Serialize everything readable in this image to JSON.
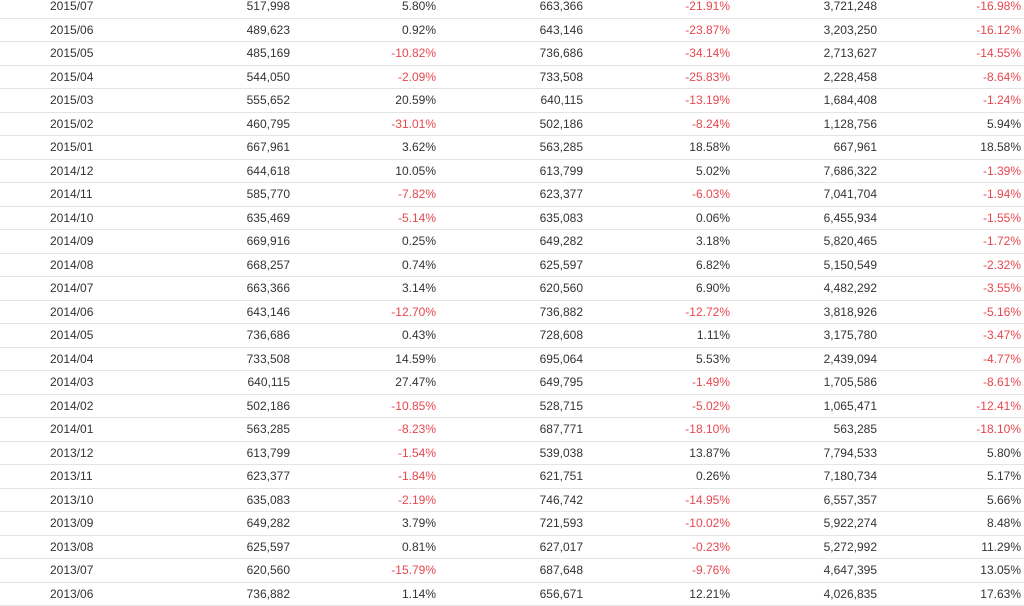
{
  "colors": {
    "text": "#333333",
    "negative": "#e8474f",
    "row_border": "#e4e4e4"
  },
  "table": {
    "rows": [
      [
        "2015/07",
        "517,998",
        "5.80%",
        "663,366",
        "-21.91%",
        "3,721,248",
        "-16.98%"
      ],
      [
        "2015/06",
        "489,623",
        "0.92%",
        "643,146",
        "-23.87%",
        "3,203,250",
        "-16.12%"
      ],
      [
        "2015/05",
        "485,169",
        "-10.82%",
        "736,686",
        "-34.14%",
        "2,713,627",
        "-14.55%"
      ],
      [
        "2015/04",
        "544,050",
        "-2.09%",
        "733,508",
        "-25.83%",
        "2,228,458",
        "-8.64%"
      ],
      [
        "2015/03",
        "555,652",
        "20.59%",
        "640,115",
        "-13.19%",
        "1,684,408",
        "-1.24%"
      ],
      [
        "2015/02",
        "460,795",
        "-31.01%",
        "502,186",
        "-8.24%",
        "1,128,756",
        "5.94%"
      ],
      [
        "2015/01",
        "667,961",
        "3.62%",
        "563,285",
        "18.58%",
        "667,961",
        "18.58%"
      ],
      [
        "2014/12",
        "644,618",
        "10.05%",
        "613,799",
        "5.02%",
        "7,686,322",
        "-1.39%"
      ],
      [
        "2014/11",
        "585,770",
        "-7.82%",
        "623,377",
        "-6.03%",
        "7,041,704",
        "-1.94%"
      ],
      [
        "2014/10",
        "635,469",
        "-5.14%",
        "635,083",
        "0.06%",
        "6,455,934",
        "-1.55%"
      ],
      [
        "2014/09",
        "669,916",
        "0.25%",
        "649,282",
        "3.18%",
        "5,820,465",
        "-1.72%"
      ],
      [
        "2014/08",
        "668,257",
        "0.74%",
        "625,597",
        "6.82%",
        "5,150,549",
        "-2.32%"
      ],
      [
        "2014/07",
        "663,366",
        "3.14%",
        "620,560",
        "6.90%",
        "4,482,292",
        "-3.55%"
      ],
      [
        "2014/06",
        "643,146",
        "-12.70%",
        "736,882",
        "-12.72%",
        "3,818,926",
        "-5.16%"
      ],
      [
        "2014/05",
        "736,686",
        "0.43%",
        "728,608",
        "1.11%",
        "3,175,780",
        "-3.47%"
      ],
      [
        "2014/04",
        "733,508",
        "14.59%",
        "695,064",
        "5.53%",
        "2,439,094",
        "-4.77%"
      ],
      [
        "2014/03",
        "640,115",
        "27.47%",
        "649,795",
        "-1.49%",
        "1,705,586",
        "-8.61%"
      ],
      [
        "2014/02",
        "502,186",
        "-10.85%",
        "528,715",
        "-5.02%",
        "1,065,471",
        "-12.41%"
      ],
      [
        "2014/01",
        "563,285",
        "-8.23%",
        "687,771",
        "-18.10%",
        "563,285",
        "-18.10%"
      ],
      [
        "2013/12",
        "613,799",
        "-1.54%",
        "539,038",
        "13.87%",
        "7,794,533",
        "5.80%"
      ],
      [
        "2013/11",
        "623,377",
        "-1.84%",
        "621,751",
        "0.26%",
        "7,180,734",
        "5.17%"
      ],
      [
        "2013/10",
        "635,083",
        "-2.19%",
        "746,742",
        "-14.95%",
        "6,557,357",
        "5.66%"
      ],
      [
        "2013/09",
        "649,282",
        "3.79%",
        "721,593",
        "-10.02%",
        "5,922,274",
        "8.48%"
      ],
      [
        "2013/08",
        "625,597",
        "0.81%",
        "627,017",
        "-0.23%",
        "5,272,992",
        "11.29%"
      ],
      [
        "2013/07",
        "620,560",
        "-15.79%",
        "687,648",
        "-9.76%",
        "4,647,395",
        "13.05%"
      ],
      [
        "2013/06",
        "736,882",
        "1.14%",
        "656,671",
        "12.21%",
        "4,026,835",
        "17.63%"
      ]
    ]
  }
}
